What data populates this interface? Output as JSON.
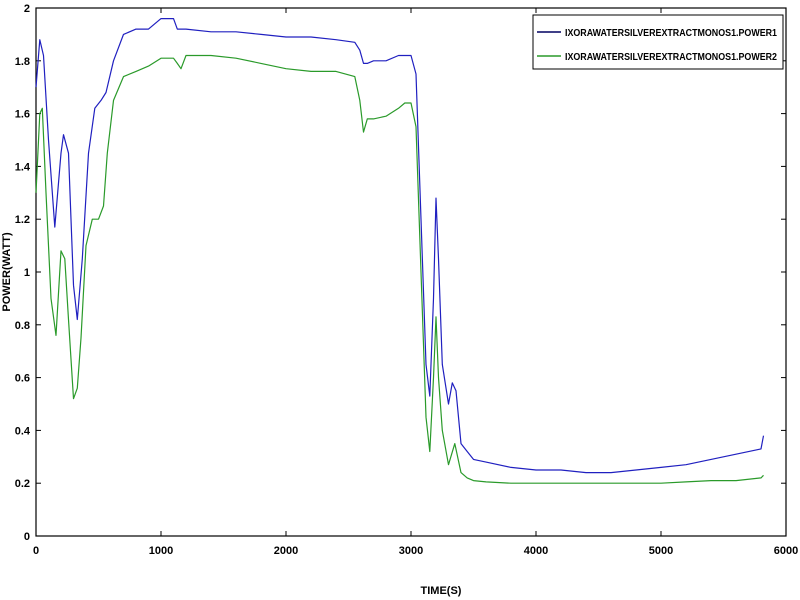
{
  "chart_data": {
    "type": "line",
    "title": "",
    "xlabel": "TIME(S)",
    "ylabel": "POWER(WATT)",
    "xlim": [
      0,
      6000
    ],
    "ylim": [
      0,
      2
    ],
    "xticks": [
      0,
      1000,
      2000,
      3000,
      4000,
      5000,
      6000
    ],
    "yticks": [
      0,
      0.2,
      0.4,
      0.6,
      0.8,
      1,
      1.2,
      1.4,
      1.6,
      1.8,
      2
    ],
    "grid": false,
    "legend_position": "top-right",
    "series": [
      {
        "name": "IXORAWATERSILVEREXTRACTMONOS1.POWER1",
        "color": "#2020c0",
        "x": [
          0,
          30,
          60,
          100,
          150,
          200,
          220,
          260,
          300,
          330,
          370,
          420,
          470,
          520,
          560,
          620,
          700,
          800,
          900,
          1000,
          1100,
          1130,
          1160,
          1200,
          1400,
          1600,
          1800,
          2000,
          2200,
          2400,
          2550,
          2590,
          2620,
          2650,
          2700,
          2800,
          2900,
          2950,
          3000,
          3040,
          3080,
          3120,
          3150,
          3180,
          3200,
          3220,
          3250,
          3300,
          3330,
          3360,
          3400,
          3450,
          3500,
          3600,
          3800,
          4000,
          4200,
          4400,
          4600,
          4800,
          5000,
          5200,
          5400,
          5600,
          5800,
          5820
        ],
        "values": [
          1.7,
          1.88,
          1.82,
          1.5,
          1.17,
          1.45,
          1.52,
          1.45,
          0.95,
          0.82,
          1.05,
          1.45,
          1.62,
          1.65,
          1.68,
          1.8,
          1.9,
          1.92,
          1.92,
          1.96,
          1.96,
          1.92,
          1.92,
          1.92,
          1.91,
          1.91,
          1.9,
          1.89,
          1.89,
          1.88,
          1.87,
          1.84,
          1.79,
          1.79,
          1.8,
          1.8,
          1.82,
          1.82,
          1.82,
          1.75,
          1.2,
          0.65,
          0.53,
          0.9,
          1.28,
          1.05,
          0.65,
          0.5,
          0.58,
          0.55,
          0.35,
          0.32,
          0.29,
          0.28,
          0.26,
          0.25,
          0.25,
          0.24,
          0.24,
          0.25,
          0.26,
          0.27,
          0.29,
          0.31,
          0.33,
          0.38
        ]
      },
      {
        "name": "IXORAWATERSILVEREXTRACTMONOS1.POWER2",
        "color": "#2a9a2a",
        "x": [
          0,
          30,
          50,
          80,
          120,
          160,
          200,
          230,
          260,
          300,
          330,
          360,
          400,
          450,
          500,
          540,
          570,
          620,
          700,
          800,
          900,
          1000,
          1100,
          1130,
          1160,
          1200,
          1400,
          1600,
          1800,
          2000,
          2200,
          2400,
          2550,
          2590,
          2620,
          2650,
          2700,
          2800,
          2900,
          2950,
          3000,
          3040,
          3080,
          3120,
          3150,
          3180,
          3200,
          3220,
          3250,
          3300,
          3350,
          3400,
          3450,
          3500,
          3600,
          3800,
          4000,
          4200,
          4400,
          4600,
          4800,
          5000,
          5200,
          5400,
          5600,
          5800,
          5820
        ],
        "values": [
          1.3,
          1.6,
          1.62,
          1.3,
          0.9,
          0.76,
          1.08,
          1.05,
          0.82,
          0.52,
          0.56,
          0.75,
          1.1,
          1.2,
          1.2,
          1.25,
          1.45,
          1.65,
          1.74,
          1.76,
          1.78,
          1.81,
          1.81,
          1.79,
          1.77,
          1.82,
          1.82,
          1.81,
          1.79,
          1.77,
          1.76,
          1.76,
          1.74,
          1.65,
          1.53,
          1.58,
          1.58,
          1.59,
          1.62,
          1.64,
          1.64,
          1.55,
          1.0,
          0.45,
          0.32,
          0.6,
          0.83,
          0.6,
          0.4,
          0.27,
          0.35,
          0.24,
          0.22,
          0.21,
          0.205,
          0.2,
          0.2,
          0.2,
          0.2,
          0.2,
          0.2,
          0.2,
          0.205,
          0.21,
          0.21,
          0.22,
          0.23
        ]
      }
    ]
  }
}
